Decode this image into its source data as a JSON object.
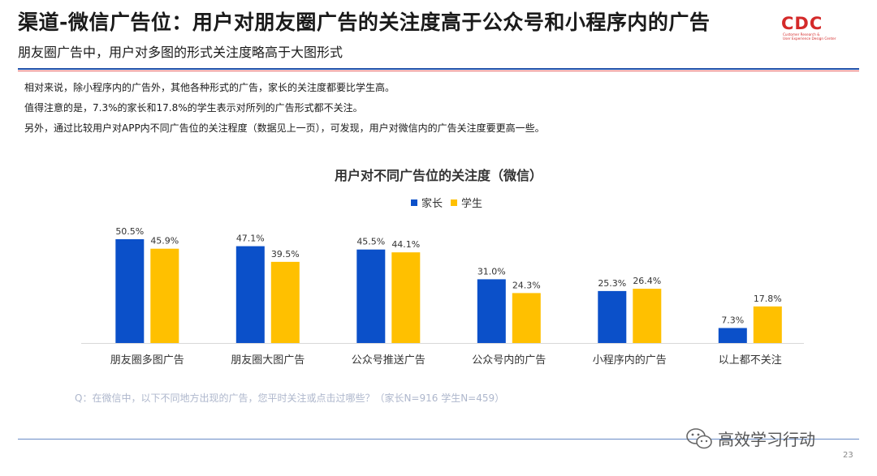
{
  "header": {
    "title": "渠道-微信广告位：用户对朋友圈广告的关注度高于公众号和小程序内的广告",
    "subtitle": "朋友圈广告中，用户对多图的形式关注度略高于大图形式"
  },
  "logo": {
    "mark": "CDC",
    "line1": "Customer Research &",
    "line2": "User Experience Design Center"
  },
  "notes": [
    "相对来说，除小程序内的广告外，其他各种形式的广告，家长的关注度都要比学生高。",
    "值得注意的是，7.3%的家长和17.8%的学生表示对所列的广告形式都不关注。",
    "另外，通过比较用户对APP内不同广告位的关注程度（数据见上一页），可发现，用户对微信内的广告关注度要更高一些。"
  ],
  "chart_data": {
    "type": "bar",
    "title": "用户对不同广告位的关注度（微信）",
    "categories": [
      "朋友圈多图广告",
      "朋友圈大图广告",
      "公众号推送广告",
      "公众号内的广告",
      "小程序内的广告",
      "以上都不关注"
    ],
    "series": [
      {
        "name": "家长",
        "color": "#0b50c9",
        "values": [
          50.5,
          47.1,
          45.5,
          31.0,
          25.3,
          7.3
        ],
        "labels": [
          "50.5%",
          "47.1%",
          "45.5%",
          "31.0%",
          "25.3%",
          "7.3%"
        ]
      },
      {
        "name": "学生",
        "color": "#ffc000",
        "values": [
          45.9,
          39.5,
          44.1,
          24.3,
          26.4,
          17.8
        ],
        "labels": [
          "45.9%",
          "39.5%",
          "44.1%",
          "24.3%",
          "26.4%",
          "17.8%"
        ]
      }
    ],
    "ylim": [
      0,
      50.5
    ],
    "legend": "top-center",
    "grid": false
  },
  "footer": {
    "question": "Q：在微信中，以下不同地方出现的广告，您平时关注或点击过哪些？（家长N=916   学生N=459）",
    "watermark": "高效学习行动",
    "page": "23"
  },
  "colors": {
    "title_rule": "#1f4ea8",
    "accent_red": "#e46060",
    "parent": "#0b50c9",
    "student": "#ffc000"
  }
}
